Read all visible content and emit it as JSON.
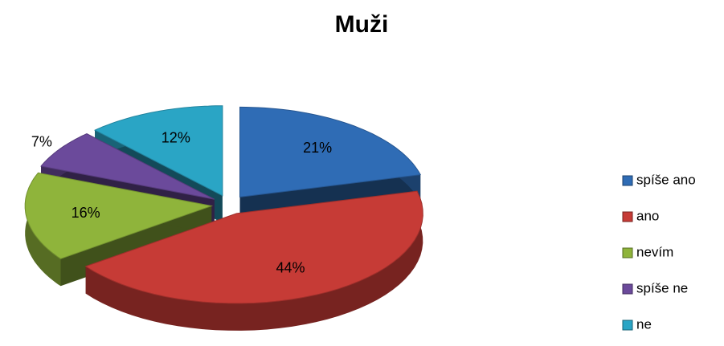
{
  "chart_data": {
    "type": "pie",
    "title": "Muži",
    "categories": [
      "spíše ano",
      "ano",
      "nevím",
      "spíše ne",
      "ne"
    ],
    "values": [
      21,
      44,
      16,
      7,
      12
    ],
    "value_labels": [
      "21%",
      "44%",
      "16%",
      "7%",
      "12%"
    ],
    "colors": [
      "#2f6cb5",
      "#c63b36",
      "#8fb43b",
      "#6b4a9b",
      "#2aa5c5"
    ],
    "legend": "right"
  }
}
